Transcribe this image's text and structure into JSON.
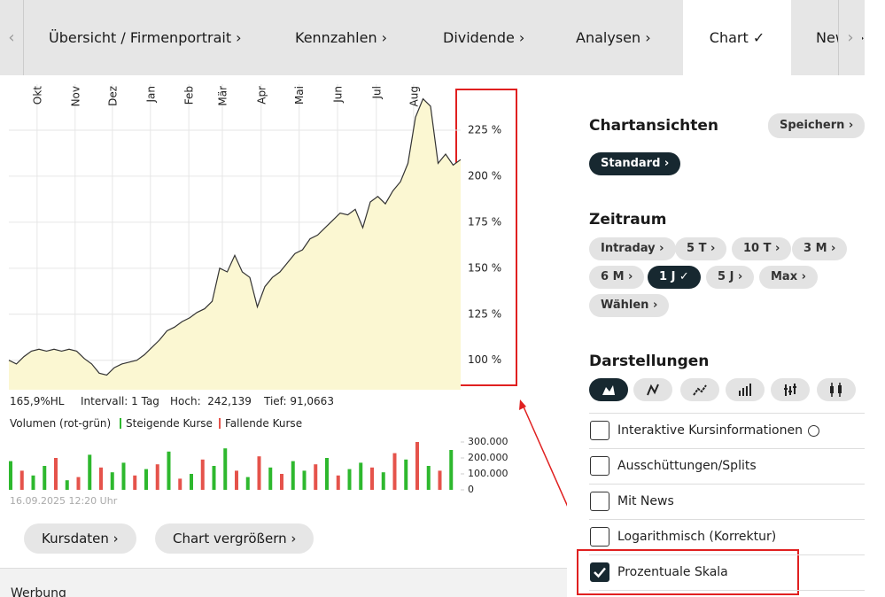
{
  "tabs": [
    {
      "label": "Übersicht / Firmenportrait ›"
    },
    {
      "label": "Kennzahlen ›"
    },
    {
      "label": "Dividende ›"
    },
    {
      "label": "Analysen ›"
    },
    {
      "label": "Chart ✓",
      "active": true
    },
    {
      "label": "News ›"
    }
  ],
  "chart_data": [
    {
      "type": "area",
      "x": [
        0,
        2,
        4,
        6,
        8,
        10,
        12,
        14,
        16,
        18,
        20,
        22,
        24,
        26,
        28,
        30,
        32,
        34,
        36,
        38,
        40,
        42,
        44,
        46,
        48,
        50,
        52,
        54,
        56,
        58,
        60,
        62,
        64,
        66,
        68,
        70,
        72,
        74,
        76,
        78,
        80,
        82,
        84,
        86,
        88,
        90,
        92,
        94,
        96,
        98,
        100,
        102,
        104,
        106,
        108,
        110,
        112,
        114,
        116,
        118,
        120
      ],
      "values": [
        100,
        98,
        102,
        105,
        106,
        105,
        106,
        105,
        106,
        105,
        101,
        98,
        93,
        92,
        96,
        98,
        99,
        100,
        103,
        107,
        111,
        116,
        118,
        121,
        123,
        126,
        128,
        132,
        150,
        148,
        157,
        148,
        145,
        129,
        140,
        145,
        148,
        153,
        158,
        160,
        166,
        168,
        172,
        176,
        180,
        179,
        182,
        172,
        186,
        189,
        185,
        192,
        197,
        207,
        232,
        242,
        238,
        207,
        212,
        206,
        209
      ],
      "xlim": [
        0,
        120
      ],
      "xticks": [
        {
          "value": 7.5,
          "label": "Okt"
        },
        {
          "value": 17.6,
          "label": "Nov"
        },
        {
          "value": 27.5,
          "label": "Dez"
        },
        {
          "value": 37.6,
          "label": "Jan"
        },
        {
          "value": 47.8,
          "label": "Feb"
        },
        {
          "value": 56.7,
          "label": "Mär"
        },
        {
          "value": 67,
          "label": "Apr"
        },
        {
          "value": 77.1,
          "label": "Mai"
        },
        {
          "value": 87.3,
          "label": "Jun"
        },
        {
          "value": 97.6,
          "label": "Jul"
        },
        {
          "value": 107.5,
          "label": "Aug"
        }
      ],
      "ylim": [
        84,
        250
      ],
      "yticks": [
        {
          "value": 100,
          "label": "100 %"
        },
        {
          "value": 125,
          "label": "125 %"
        },
        {
          "value": 150,
          "label": "150 %"
        },
        {
          "value": 175,
          "label": "175 %"
        },
        {
          "value": 200,
          "label": "200 %"
        },
        {
          "value": 225,
          "label": "225 %"
        }
      ],
      "color": "#333333",
      "fill_color": "#fbf7d2",
      "grid": true
    },
    {
      "type": "bar",
      "title": "Volumen (rot-grün)",
      "x": [
        0,
        3,
        6,
        9,
        12,
        15,
        18,
        21,
        24,
        27,
        30,
        33,
        36,
        39,
        42,
        45,
        48,
        51,
        54,
        57,
        60,
        63,
        66,
        69,
        72,
        75,
        78,
        81,
        84,
        87,
        90,
        93,
        96,
        99,
        102,
        105,
        108,
        111,
        114,
        117
      ],
      "series": [
        {
          "name": "Steigende Kurse",
          "color": "#2eb82e",
          "values": [
            180000,
            null,
            90000,
            150000,
            null,
            60000,
            null,
            220000,
            null,
            110000,
            170000,
            null,
            130000,
            null,
            240000,
            null,
            100000,
            null,
            150000,
            260000,
            null,
            80000,
            null,
            140000,
            null,
            180000,
            120000,
            null,
            200000,
            null,
            130000,
            170000,
            null,
            110000,
            null,
            190000,
            null,
            150000,
            null,
            250000
          ]
        },
        {
          "name": "Fallende Kurse",
          "color": "#e5534b",
          "values": [
            null,
            120000,
            null,
            null,
            200000,
            null,
            80000,
            null,
            140000,
            null,
            null,
            90000,
            null,
            160000,
            null,
            70000,
            null,
            190000,
            null,
            null,
            120000,
            null,
            210000,
            null,
            100000,
            null,
            null,
            160000,
            null,
            90000,
            null,
            null,
            140000,
            null,
            230000,
            null,
            300000,
            null,
            120000,
            null
          ]
        }
      ],
      "xlim": [
        0,
        120
      ],
      "ylim": [
        0,
        350000
      ],
      "yticks": [
        0,
        {
          "value": 100000,
          "label": "100.000"
        },
        {
          "value": 200000,
          "label": "200.000"
        },
        {
          "value": 300000,
          "label": "300.000"
        }
      ]
    }
  ],
  "chart_info": [
    "165,9%HL",
    "Intervall: 1 Tag",
    "Hoch:  242,139",
    "Tief: 91,0663"
  ],
  "timestamp": "16.09.2025 12:20 Uhr",
  "buttons": [
    "Kursdaten ›",
    "Chart vergrößern ›"
  ],
  "ad_label": "Werbung",
  "sidebar": {
    "views": {
      "title": "Chartansichten",
      "save": "Speichern ›",
      "items": [
        {
          "label": "Standard ›",
          "active": true
        }
      ]
    },
    "period": {
      "title": "Zeitraum",
      "items": [
        {
          "label": "Intraday ›"
        },
        {
          "label": "5 T ›"
        },
        {
          "label": "10 T ›"
        },
        {
          "label": "3 M ›"
        },
        {
          "label": "6 M ›"
        },
        {
          "label": "1 J ✓",
          "active": true
        },
        {
          "label": "5 J ›"
        },
        {
          "label": "Max ›"
        },
        {
          "label": "Wählen ›"
        }
      ]
    },
    "display": {
      "title": "Darstellungen",
      "options": [
        {
          "label": "Interaktive Kursinformationen",
          "checked": false,
          "info": true
        },
        {
          "label": "Ausschüttungen/Splits",
          "checked": false
        },
        {
          "label": "Mit News",
          "checked": false
        },
        {
          "label": "Logarithmisch (Korrektur)",
          "checked": false
        },
        {
          "label": "Prozentuale Skala",
          "checked": true
        }
      ]
    }
  }
}
